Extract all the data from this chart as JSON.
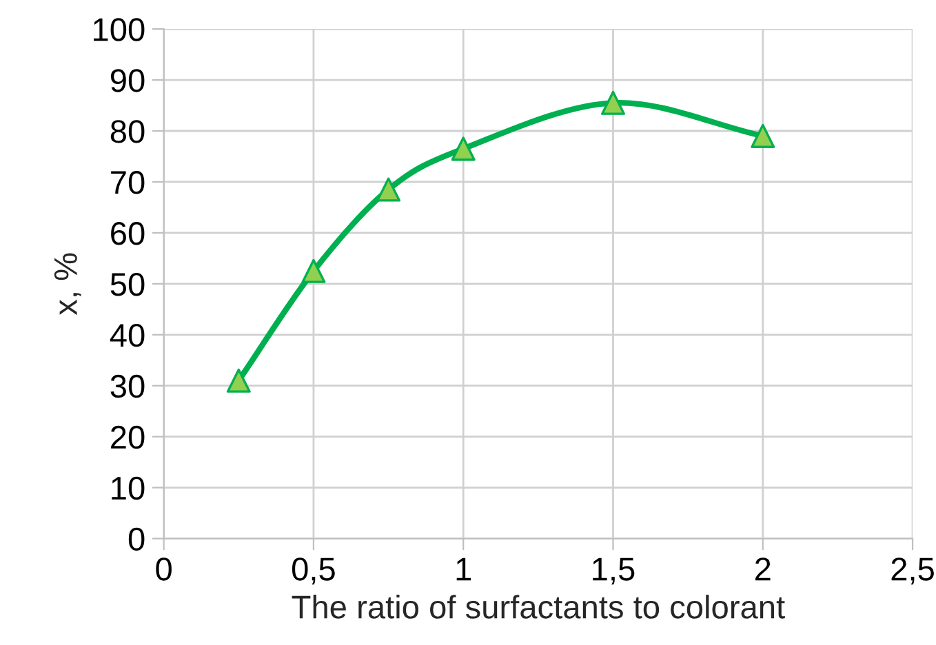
{
  "chart_data": {
    "type": "line",
    "xlabel": "The ratio of surfactants to colorant",
    "ylabel": "x, %",
    "x": [
      0.25,
      0.5,
      0.75,
      1,
      1.5,
      2
    ],
    "series": [
      {
        "color": "#00b050",
        "values": [
          31,
          52.5,
          68.5,
          76.5,
          85.5,
          79
        ]
      }
    ],
    "marker": "triangle",
    "line_style": "solid",
    "xlim": [
      0,
      2.5
    ],
    "xticks": [
      0,
      {
        "value": 0.5,
        "label": "0,5"
      },
      1,
      {
        "value": 1.5,
        "label": "1,5"
      },
      2,
      {
        "value": 2.5,
        "label": "2,5"
      }
    ],
    "ylim": [
      0,
      100
    ],
    "yticks": [
      0,
      10,
      20,
      30,
      40,
      50,
      60,
      70,
      80,
      90,
      100
    ],
    "grid": true,
    "legend": false
  }
}
